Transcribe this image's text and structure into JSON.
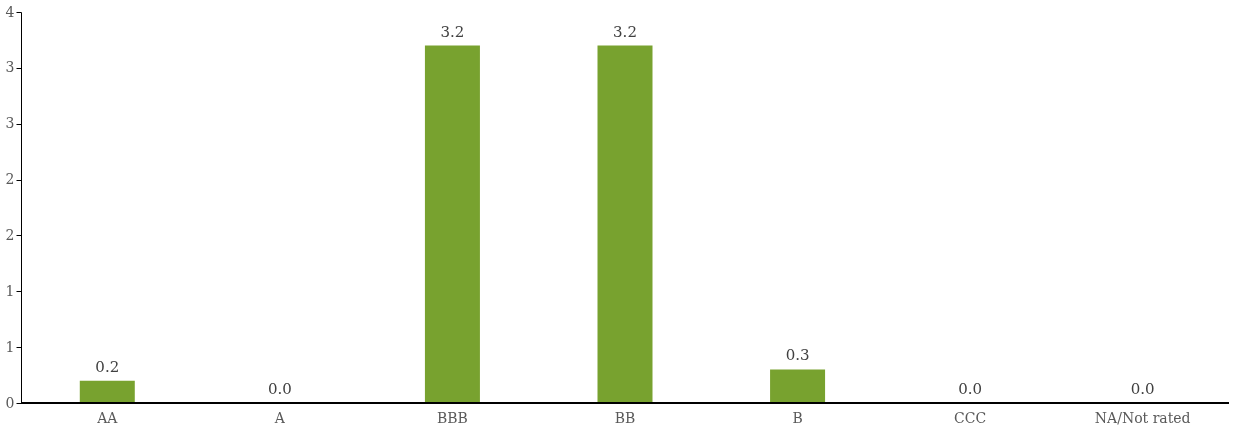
{
  "chart_data": {
    "type": "bar",
    "categories": [
      "AA",
      "A",
      "BBB",
      "BB",
      "B",
      "CCC",
      "NA/Not rated"
    ],
    "values": [
      0.2,
      0.0,
      3.2,
      3.2,
      0.3,
      0.0,
      0.0
    ],
    "value_labels": [
      "0.2",
      "0.0",
      "3.2",
      "3.2",
      "0.3",
      "0.0",
      "0.0"
    ],
    "color": "#78a22f",
    "ylim": [
      0,
      3.5
    ],
    "yticks": [
      0,
      {
        "value": 0.5,
        "label": "1"
      },
      1,
      {
        "value": 1.5,
        "label": "2"
      },
      2,
      {
        "value": 2.5,
        "label": "3"
      },
      3,
      {
        "value": 3.5,
        "label": "4"
      }
    ],
    "grid": false
  }
}
